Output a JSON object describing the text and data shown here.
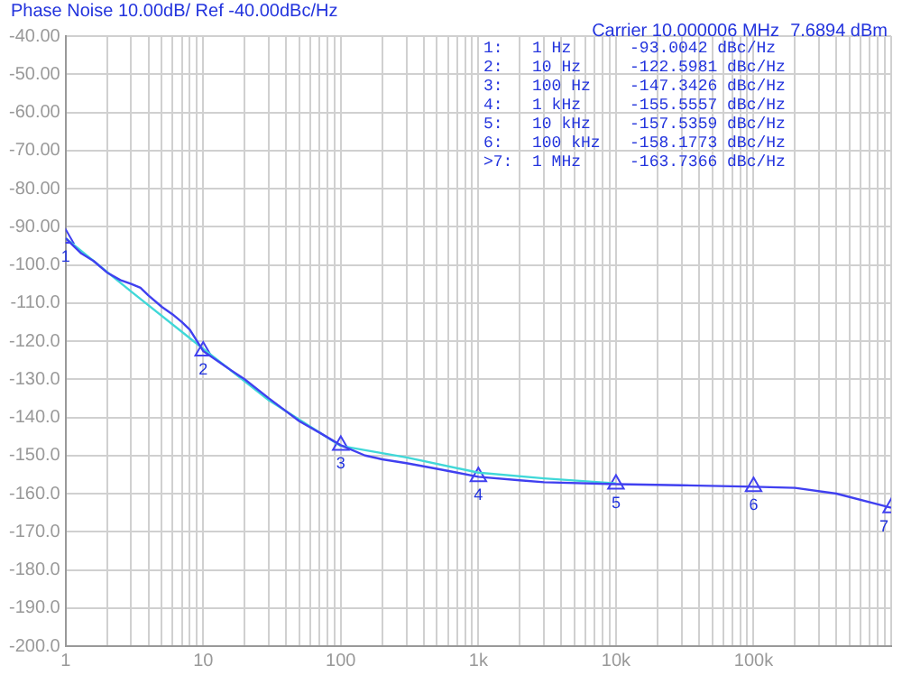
{
  "chart_data": {
    "type": "line",
    "title": "Phase Noise 10.00dB/ Ref -40.00dBc/Hz",
    "subtitle": "Carrier 10.000006 MHz",
    "log": "x",
    "grid": true,
    "legend": false,
    "marker": "none",
    "line_style": "solid",
    "xlim": [
      1,
      1000000
    ],
    "ylim": [
      -200,
      -40
    ],
    "xticks": [
      {
        "value": 1,
        "label": "1"
      },
      {
        "value": 2,
        "label": null
      },
      {
        "value": 3,
        "label": null
      },
      {
        "value": 4,
        "label": null
      },
      {
        "value": 5,
        "label": null
      },
      {
        "value": 6,
        "label": null
      },
      {
        "value": 7,
        "label": null
      },
      {
        "value": 8,
        "label": null
      },
      {
        "value": 9,
        "label": null
      },
      {
        "value": 10,
        "label": "10"
      },
      {
        "value": 20,
        "label": null
      },
      {
        "value": 30,
        "label": null
      },
      {
        "value": 40,
        "label": null
      },
      {
        "value": 50,
        "label": null
      },
      {
        "value": 60,
        "label": null
      },
      {
        "value": 70,
        "label": null
      },
      {
        "value": 80,
        "label": null
      },
      {
        "value": 90,
        "label": null
      },
      {
        "value": 100,
        "label": "100"
      },
      {
        "value": 200,
        "label": null
      },
      {
        "value": 300,
        "label": null
      },
      {
        "value": 400,
        "label": null
      },
      {
        "value": 500,
        "label": null
      },
      {
        "value": 600,
        "label": null
      },
      {
        "value": 700,
        "label": null
      },
      {
        "value": 800,
        "label": null
      },
      {
        "value": 900,
        "label": null
      },
      {
        "value": 1000,
        "label": "1k"
      },
      {
        "value": 2000,
        "label": null
      },
      {
        "value": 3000,
        "label": null
      },
      {
        "value": 4000,
        "label": null
      },
      {
        "value": 5000,
        "label": null
      },
      {
        "value": 6000,
        "label": null
      },
      {
        "value": 7000,
        "label": null
      },
      {
        "value": 8000,
        "label": null
      },
      {
        "value": 9000,
        "label": null
      },
      {
        "value": 10000,
        "label": "10k"
      },
      {
        "value": 20000,
        "label": null
      },
      {
        "value": 30000,
        "label": null
      },
      {
        "value": 40000,
        "label": null
      },
      {
        "value": 50000,
        "label": null
      },
      {
        "value": 60000,
        "label": null
      },
      {
        "value": 70000,
        "label": null
      },
      {
        "value": 80000,
        "label": null
      },
      {
        "value": 90000,
        "label": null
      },
      {
        "value": 100000,
        "label": "100k"
      },
      {
        "value": 200000,
        "label": null
      },
      {
        "value": 300000,
        "label": null
      },
      {
        "value": 400000,
        "label": null
      },
      {
        "value": 500000,
        "label": null
      },
      {
        "value": 600000,
        "label": null
      },
      {
        "value": 700000,
        "label": null
      },
      {
        "value": 800000,
        "label": null
      },
      {
        "value": 900000,
        "label": null
      },
      {
        "value": 1000000,
        "label": null
      }
    ],
    "yticks": [
      {
        "value": -40,
        "label": "-40.00"
      },
      {
        "value": -50,
        "label": "-50.00"
      },
      {
        "value": -60,
        "label": "-60.00"
      },
      {
        "value": -70,
        "label": "-70.00"
      },
      {
        "value": -80,
        "label": "-80.00"
      },
      {
        "value": -90,
        "label": "-90.00"
      },
      {
        "value": -100,
        "label": "-100.0"
      },
      {
        "value": -110,
        "label": "-110.0"
      },
      {
        "value": -120,
        "label": "-120.0"
      },
      {
        "value": -130,
        "label": "-130.0"
      },
      {
        "value": -140,
        "label": "-140.0"
      },
      {
        "value": -150,
        "label": "-150.0"
      },
      {
        "value": -160,
        "label": "-160.0"
      },
      {
        "value": -170,
        "label": "-170.0"
      },
      {
        "value": -180,
        "label": "-180.0"
      },
      {
        "value": -190,
        "label": "-190.0"
      },
      {
        "value": -200,
        "label": "-200.0"
      }
    ],
    "series": [
      {
        "color": "#4040f0",
        "x": [
          1,
          1.3,
          1.6,
          2,
          2.5,
          3,
          3.5,
          4,
          5,
          6,
          7,
          8,
          10,
          15,
          20,
          30,
          50,
          70,
          100,
          150,
          200,
          300,
          500,
          700,
          1000,
          2000,
          3000,
          10000,
          30000,
          100000,
          200000,
          400000,
          1000000
        ],
        "values": [
          -93,
          -97,
          -99,
          -102,
          -104,
          -105,
          -106,
          -108,
          -111,
          -113,
          -115,
          -117,
          -122.6,
          -127,
          -130,
          -135,
          -141,
          -144,
          -147.3,
          -150,
          -151,
          -152,
          -153.5,
          -154.5,
          -155.6,
          -156.5,
          -157,
          -157.5,
          -157.8,
          -158.2,
          -158.5,
          -160,
          -163.7
        ]
      },
      {
        "color": "#40d8d8",
        "x": [
          1,
          3,
          10,
          30,
          100,
          300,
          1000,
          3000,
          10000
        ],
        "values": [
          -93,
          -107,
          -122,
          -135.5,
          -147.5,
          -150.5,
          -154.5,
          -156,
          -157.3
        ]
      },
      {
        "type": "scatter",
        "marker": "triangle",
        "color": "#4040f0",
        "x": [
          1,
          10,
          100,
          1000,
          10000,
          100000,
          1000000
        ],
        "values": [
          -93.0042,
          -122.5981,
          -147.3426,
          -155.5557,
          -157.5359,
          -158.1773,
          -163.7366
        ]
      }
    ],
    "annotations": [
      "7.6894 dBm",
      "1:   1 Hz      -93.0042 dBc/Hz",
      "2:   10 Hz     -122.5981 dBc/Hz",
      "3:   100 Hz    -147.3426 dBc/Hz",
      "4:   1 kHz     -155.5557 dBc/Hz",
      "5:   10 kHz    -157.5359 dBc/Hz",
      "6:   100 kHz   -158.1773 dBc/Hz",
      ">7:  1 MHz     -163.7366 dBc/Hz",
      {
        "text": "1",
        "x": 1,
        "y": -93.0042
      },
      {
        "text": "2",
        "x": 10,
        "y": -122.5981
      },
      {
        "text": "3",
        "x": 100,
        "y": -147.3426
      },
      {
        "text": "4",
        "x": 1000,
        "y": -155.5557
      },
      {
        "text": "5",
        "x": 10000,
        "y": -157.5359
      },
      {
        "text": "6",
        "x": 100000,
        "y": -158.1773
      },
      {
        "text": "7",
        "x": 1000000,
        "y": -163.7366
      }
    ]
  }
}
